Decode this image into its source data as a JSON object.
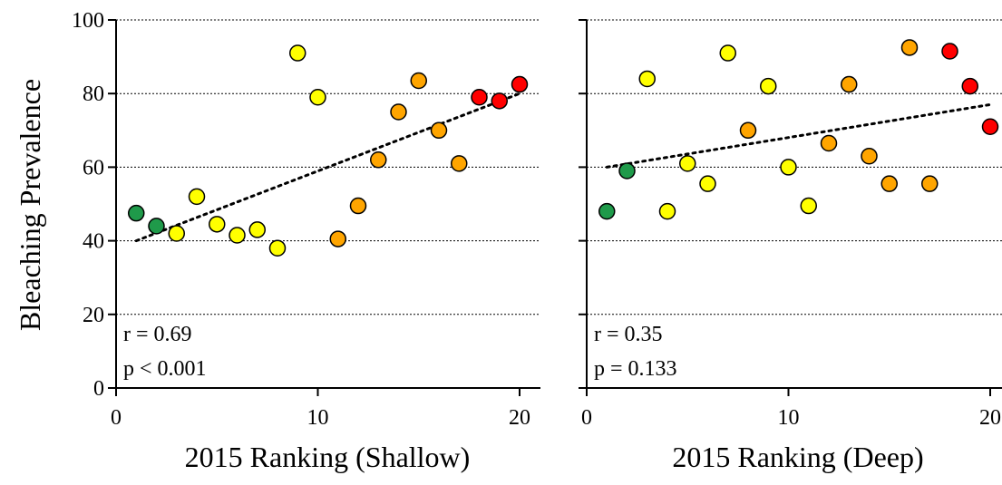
{
  "colors": {
    "green": "#1f9a4a",
    "yellow": "#ffff00",
    "orange": "#ffa500",
    "red": "#ff0000"
  },
  "chart_data": [
    {
      "type": "scatter",
      "title": "",
      "xlabel": "2015 Ranking (Shallow)",
      "ylabel": "Bleaching Prevalence",
      "xlim": [
        0,
        21
      ],
      "ylim": [
        0,
        100
      ],
      "xticks": [
        0,
        10,
        20
      ],
      "yticks": [
        0,
        20,
        40,
        60,
        80,
        100
      ],
      "grid": "horizontal dotted",
      "stats": {
        "r": "r = 0.69",
        "p": "p < 0.001"
      },
      "trendline": {
        "x": [
          1,
          20
        ],
        "y": [
          40,
          80
        ]
      },
      "points": [
        {
          "x": 1,
          "y": 47.5,
          "color": "green"
        },
        {
          "x": 2,
          "y": 44,
          "color": "green"
        },
        {
          "x": 3,
          "y": 42,
          "color": "yellow"
        },
        {
          "x": 4,
          "y": 52,
          "color": "yellow"
        },
        {
          "x": 5,
          "y": 44.5,
          "color": "yellow"
        },
        {
          "x": 6,
          "y": 41.5,
          "color": "yellow"
        },
        {
          "x": 7,
          "y": 43,
          "color": "yellow"
        },
        {
          "x": 8,
          "y": 38,
          "color": "yellow"
        },
        {
          "x": 9,
          "y": 91,
          "color": "yellow"
        },
        {
          "x": 10,
          "y": 79,
          "color": "yellow"
        },
        {
          "x": 11,
          "y": 40.5,
          "color": "orange"
        },
        {
          "x": 12,
          "y": 49.5,
          "color": "orange"
        },
        {
          "x": 13,
          "y": 62,
          "color": "orange"
        },
        {
          "x": 14,
          "y": 75,
          "color": "orange"
        },
        {
          "x": 15,
          "y": 83.5,
          "color": "orange"
        },
        {
          "x": 16,
          "y": 70,
          "color": "orange"
        },
        {
          "x": 17,
          "y": 61,
          "color": "orange"
        },
        {
          "x": 18,
          "y": 79,
          "color": "red"
        },
        {
          "x": 19,
          "y": 78,
          "color": "red"
        },
        {
          "x": 20,
          "y": 82.5,
          "color": "red"
        }
      ]
    },
    {
      "type": "scatter",
      "title": "",
      "xlabel": "2015 Ranking (Deep)",
      "ylabel": "",
      "xlim": [
        0,
        21
      ],
      "ylim": [
        0,
        100
      ],
      "xticks": [
        0,
        10,
        20
      ],
      "yticks": [
        0,
        20,
        40,
        60,
        80,
        100
      ],
      "grid": "horizontal dotted",
      "stats": {
        "r": "r = 0.35",
        "p": "p = 0.133"
      },
      "trendline": {
        "x": [
          1,
          20
        ],
        "y": [
          60,
          77
        ]
      },
      "points": [
        {
          "x": 1,
          "y": 48,
          "color": "green"
        },
        {
          "x": 2,
          "y": 59,
          "color": "green"
        },
        {
          "x": 3,
          "y": 84,
          "color": "yellow"
        },
        {
          "x": 4,
          "y": 48,
          "color": "yellow"
        },
        {
          "x": 5,
          "y": 61,
          "color": "yellow"
        },
        {
          "x": 6,
          "y": 55.5,
          "color": "yellow"
        },
        {
          "x": 7,
          "y": 91,
          "color": "yellow"
        },
        {
          "x": 8,
          "y": 70,
          "color": "orange"
        },
        {
          "x": 9,
          "y": 82,
          "color": "yellow"
        },
        {
          "x": 10,
          "y": 60,
          "color": "yellow"
        },
        {
          "x": 11,
          "y": 49.5,
          "color": "yellow"
        },
        {
          "x": 12,
          "y": 66.5,
          "color": "orange"
        },
        {
          "x": 13,
          "y": 82.5,
          "color": "orange"
        },
        {
          "x": 14,
          "y": 63,
          "color": "orange"
        },
        {
          "x": 15,
          "y": 55.5,
          "color": "orange"
        },
        {
          "x": 16,
          "y": 92.5,
          "color": "orange"
        },
        {
          "x": 17,
          "y": 55.5,
          "color": "orange"
        },
        {
          "x": 18,
          "y": 91.5,
          "color": "red"
        },
        {
          "x": 19,
          "y": 82,
          "color": "red"
        },
        {
          "x": 20,
          "y": 71,
          "color": "red"
        }
      ]
    }
  ]
}
